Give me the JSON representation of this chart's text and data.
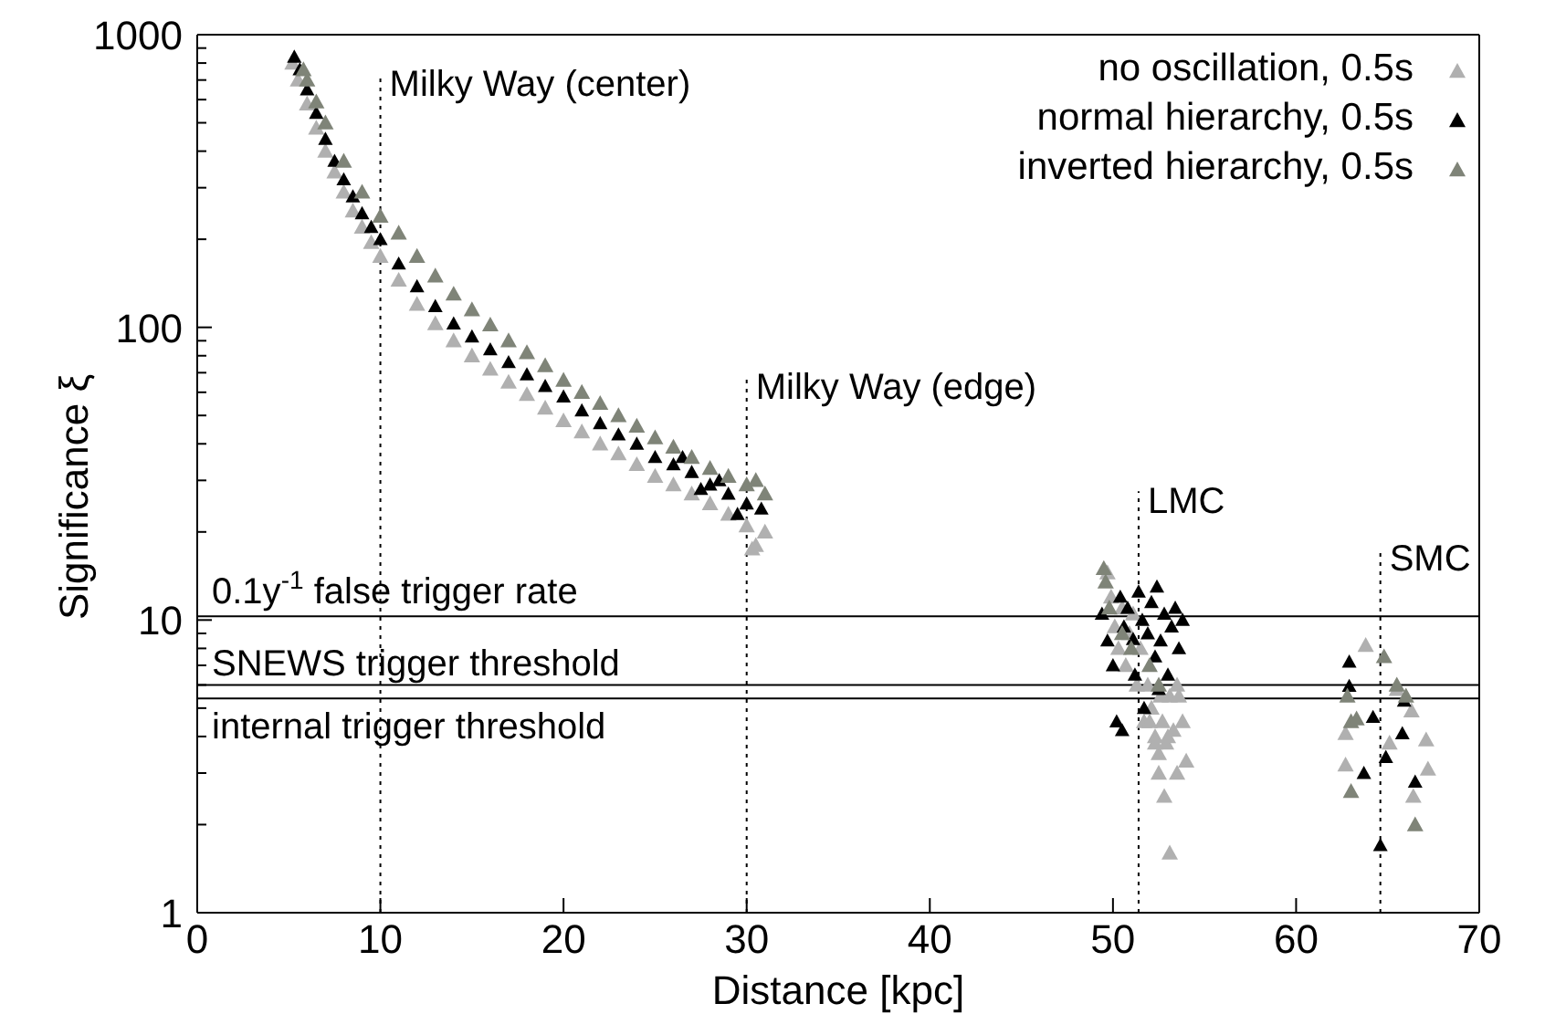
{
  "chart_data": {
    "type": "scatter",
    "xlabel": "Distance [kpc]",
    "ylabel": "Significance ξ",
    "log": "y",
    "xlim": [
      0,
      70
    ],
    "xticks": [
      0,
      10,
      20,
      30,
      40,
      50,
      60,
      70
    ],
    "ylim": [
      1,
      1000
    ],
    "yticks": [
      1,
      {
        "value": 2,
        "label": null
      },
      {
        "value": 3,
        "label": null
      },
      {
        "value": 4,
        "label": null
      },
      {
        "value": 5,
        "label": null
      },
      {
        "value": 6,
        "label": null
      },
      {
        "value": 7,
        "label": null
      },
      {
        "value": 8,
        "label": null
      },
      {
        "value": 9,
        "label": null
      },
      10,
      {
        "value": 20,
        "label": null
      },
      {
        "value": 30,
        "label": null
      },
      {
        "value": 40,
        "label": null
      },
      {
        "value": 50,
        "label": null
      },
      {
        "value": 60,
        "label": null
      },
      {
        "value": 70,
        "label": null
      },
      {
        "value": 80,
        "label": null
      },
      {
        "value": 90,
        "label": null
      },
      100,
      {
        "value": 200,
        "label": null
      },
      {
        "value": 300,
        "label": null
      },
      {
        "value": 400,
        "label": null
      },
      {
        "value": 500,
        "label": null
      },
      {
        "value": 600,
        "label": null
      },
      {
        "value": 700,
        "label": null
      },
      {
        "value": 800,
        "label": null
      },
      {
        "value": 900,
        "label": null
      },
      1000
    ],
    "grid": false,
    "legend": "top right",
    "marker": "triangle",
    "ref_lines": [
      {
        "axis": "y",
        "value": 10.3,
        "label": "0.1y$^{-1}$ false trigger rate",
        "line_style": "solid",
        "color": "#000000"
      },
      {
        "axis": "y",
        "value": 6,
        "label": "SNEWS trigger threshold",
        "line_style": "solid",
        "color": "#000000"
      },
      {
        "axis": "y",
        "value": 5.4,
        "label": "internal trigger threshold",
        "line_style": "solid",
        "color": "#000000"
      },
      {
        "axis": "x",
        "value": 10,
        "label": "Milky Way (center)",
        "line_style": "dotted",
        "color": "#000000"
      },
      {
        "axis": "x",
        "value": 30,
        "label": "Milky Way (edge)",
        "line_style": "dotted",
        "color": "#000000"
      },
      {
        "axis": "x",
        "value": 51.4,
        "label": "LMC",
        "line_style": "dotted",
        "color": "#000000"
      },
      {
        "axis": "x",
        "value": 64.6,
        "label": "SMC",
        "line_style": "dotted",
        "color": "#000000"
      }
    ],
    "series": [
      {
        "name": "no oscillation, 0.5s",
        "color": "#b0b0b0",
        "x": [
          5.2,
          5.5,
          6,
          6.5,
          7,
          7.5,
          8,
          8.5,
          9,
          9.5,
          10,
          11,
          12,
          13,
          14,
          15,
          16,
          17,
          18,
          19,
          20,
          21,
          22,
          23,
          24,
          25,
          26,
          27,
          28,
          29,
          30,
          30.5,
          31,
          30.3,
          49.7,
          49.9,
          50.1,
          50.3,
          50.5,
          50.7,
          50.9,
          51.1,
          51.3,
          51.5,
          51.7,
          51.9,
          52.1,
          52.3,
          52.5,
          52.7,
          52.9,
          53.1,
          53.3,
          53.5,
          52,
          52.5,
          53.1,
          52.8,
          53.5,
          53,
          52.3,
          53.8,
          54,
          52.6,
          53.6,
          63.8,
          62.7,
          62.7,
          65.1,
          65.5,
          66.3,
          67.1,
          67.2,
          66.4
        ],
        "values": [
          800,
          700,
          580,
          480,
          400,
          340,
          290,
          250,
          220,
          195,
          175,
          145,
          120,
          103,
          90,
          80,
          72,
          65,
          59,
          53,
          48,
          44,
          40,
          37,
          34,
          31,
          29,
          27,
          25,
          23,
          21,
          18,
          20,
          17.5,
          14.5,
          12,
          9.5,
          8,
          11,
          7,
          9,
          10.5,
          6,
          8,
          4.5,
          6,
          5,
          4,
          3.5,
          4.5,
          3.8,
          5.5,
          4.2,
          6,
          4.5,
          3,
          1.6,
          2.5,
          3,
          4,
          3.8,
          4.5,
          3.3,
          5.5,
          5.5,
          8.2,
          4.1,
          3.2,
          3.8,
          5.8,
          4.9,
          3.9,
          3.1,
          2.5
        ]
      },
      {
        "name": "normal hierarchy, 0.5s",
        "color": "#000000",
        "x": [
          5.3,
          5.6,
          6,
          6.5,
          7,
          7.5,
          8,
          8.5,
          9,
          9.5,
          10,
          11,
          12,
          13,
          14,
          15,
          16,
          17,
          18,
          19,
          20,
          21,
          22,
          23,
          24,
          25,
          26,
          27,
          28,
          29,
          30,
          30.8,
          26.5,
          28.5,
          29.5,
          27.5,
          49.4,
          49.7,
          50,
          50.2,
          50.4,
          50.6,
          50.8,
          51.1,
          51.2,
          51.4,
          51.6,
          51.7,
          51.9,
          52.1,
          52.3,
          52.4,
          52.6,
          52.8,
          53,
          53.2,
          53.4,
          53.6,
          53.8,
          52.5,
          50.5,
          62.9,
          62.9,
          64.2,
          63.7,
          64.6,
          64.9,
          65.9,
          65.8,
          66.5
        ],
        "values": [
          840,
          760,
          650,
          540,
          440,
          370,
          320,
          280,
          245,
          220,
          200,
          165,
          138,
          118,
          103,
          93,
          84,
          76,
          69,
          63,
          58,
          52,
          47,
          43,
          40,
          36,
          34,
          32,
          29,
          27,
          25,
          24,
          36,
          30,
          23,
          28,
          10.5,
          8.5,
          7,
          4.5,
          12,
          9.5,
          11,
          8.6,
          6.5,
          12.5,
          10,
          5,
          9,
          11.5,
          7.5,
          13,
          8.5,
          10.5,
          6.5,
          9.5,
          11,
          8,
          10,
          5.8,
          4.2,
          7.2,
          5.95,
          4.66,
          3,
          1.7,
          3.4,
          5.3,
          4.1,
          2.8
        ]
      },
      {
        "name": "inverted hierarchy, 0.5s",
        "color": "#7f8478",
        "x": [
          5.8,
          6,
          6.5,
          7,
          8,
          9,
          10,
          11,
          12,
          13,
          14,
          15,
          16,
          17,
          18,
          19,
          20,
          21,
          22,
          23,
          24,
          25,
          26,
          27,
          28,
          29,
          30,
          30.5,
          31,
          49.5,
          49.6,
          49.8,
          50.5,
          51,
          52,
          52.5,
          62.8,
          63,
          63.3,
          64.8,
          65.5,
          66.5,
          63,
          66
        ],
        "values": [
          760,
          700,
          590,
          500,
          370,
          290,
          240,
          210,
          175,
          150,
          130,
          115,
          102,
          90,
          82,
          74,
          66,
          60,
          55,
          50,
          46,
          42,
          39,
          36,
          33,
          31,
          29,
          30,
          27,
          15,
          13.5,
          11,
          9,
          8,
          7,
          6,
          5.5,
          4.5,
          4.6,
          7.5,
          6,
          2,
          2.6,
          5.5
        ]
      }
    ]
  }
}
